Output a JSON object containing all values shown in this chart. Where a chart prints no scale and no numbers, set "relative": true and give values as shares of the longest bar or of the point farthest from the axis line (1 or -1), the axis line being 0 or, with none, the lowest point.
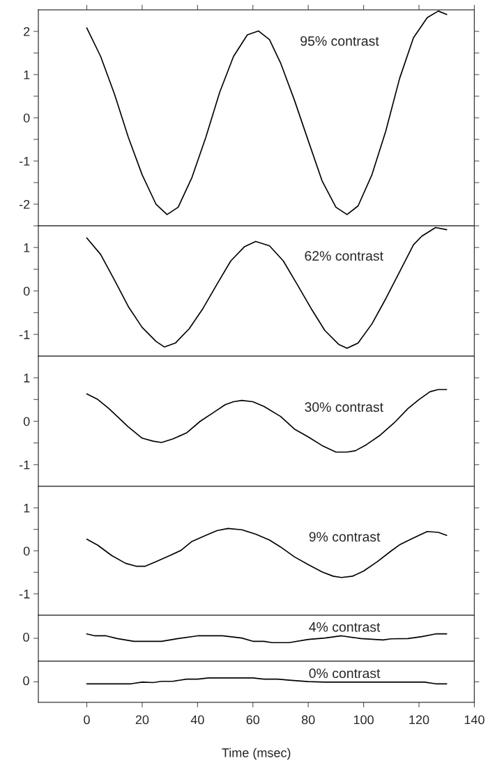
{
  "chart_data": [
    {
      "type": "line",
      "annotations": [
        "95% contrast"
      ],
      "xlim": [
        -17.5,
        140
      ],
      "xticks": [
        0,
        20,
        40,
        60,
        80,
        100,
        120,
        140
      ],
      "ylim": [
        -2.5,
        2.5
      ],
      "yticks": [
        {
          "value": -2.5,
          "label": null
        },
        -2,
        {
          "value": -1.5,
          "label": null
        },
        -1,
        {
          "value": -0.5,
          "label": null
        },
        0,
        {
          "value": 0.5,
          "label": null
        },
        1,
        {
          "value": 1.5,
          "label": null
        },
        2
      ],
      "tick_labels": "y",
      "series": [
        {
          "color": "#000000",
          "x": [
            0,
            5,
            10,
            15,
            20,
            25,
            29,
            33,
            38,
            43,
            48,
            53,
            58,
            62,
            66,
            70,
            75,
            80,
            85,
            90,
            94,
            98,
            103,
            108,
            113,
            118,
            123,
            127,
            130
          ],
          "values": [
            2.08,
            1.42,
            0.55,
            -0.45,
            -1.32,
            -2.0,
            -2.24,
            -2.07,
            -1.38,
            -0.45,
            0.59,
            1.42,
            1.92,
            2.01,
            1.81,
            1.27,
            0.41,
            -0.53,
            -1.46,
            -2.07,
            -2.24,
            -2.04,
            -1.32,
            -0.31,
            0.91,
            1.85,
            2.32,
            2.47,
            2.39
          ]
        }
      ]
    },
    {
      "type": "line",
      "annotations": [
        "62% contrast"
      ],
      "xlim": [
        -17.5,
        140
      ],
      "xticks": [
        0,
        20,
        40,
        60,
        80,
        100,
        120,
        140
      ],
      "ylim": [
        -1.5,
        1.5
      ],
      "yticks": [
        -1,
        {
          "value": -0.5,
          "label": null
        },
        0,
        {
          "value": 0.5,
          "label": null
        },
        1
      ],
      "tick_labels": "y",
      "series": [
        {
          "color": "#000000",
          "x": [
            0,
            5,
            10,
            15,
            20,
            25,
            28,
            32,
            37,
            42,
            47,
            52,
            57,
            61,
            66,
            71,
            76,
            81,
            86,
            91,
            94,
            98,
            103,
            108,
            113,
            118,
            121,
            126,
            130
          ],
          "values": [
            1.22,
            0.84,
            0.25,
            -0.36,
            -0.84,
            -1.16,
            -1.29,
            -1.2,
            -0.87,
            -0.4,
            0.15,
            0.69,
            1.02,
            1.14,
            1.04,
            0.69,
            0.15,
            -0.4,
            -0.91,
            -1.23,
            -1.32,
            -1.2,
            -0.76,
            -0.18,
            0.44,
            1.06,
            1.26,
            1.46,
            1.41
          ]
        }
      ]
    },
    {
      "type": "line",
      "annotations": [
        "30% contrast"
      ],
      "xlim": [
        -17.5,
        140
      ],
      "xticks": [
        0,
        20,
        40,
        60,
        80,
        100,
        120,
        140
      ],
      "ylim": [
        -1.5,
        1.5
      ],
      "yticks": [
        -1,
        {
          "value": -0.5,
          "label": null
        },
        0,
        {
          "value": 0.5,
          "label": null
        },
        1
      ],
      "tick_labels": "y",
      "series": [
        {
          "color": "#000000",
          "x": [
            0,
            4,
            8,
            11,
            15,
            20,
            24,
            27,
            31,
            36,
            41,
            46,
            50,
            53,
            56,
            60,
            64,
            70,
            75,
            80,
            85,
            90,
            94,
            97,
            101,
            106,
            111,
            116,
            120,
            124,
            127,
            130
          ],
          "values": [
            0.63,
            0.5,
            0.29,
            0.11,
            -0.13,
            -0.39,
            -0.46,
            -0.49,
            -0.41,
            -0.27,
            0.0,
            0.21,
            0.38,
            0.45,
            0.48,
            0.45,
            0.34,
            0.11,
            -0.18,
            -0.36,
            -0.56,
            -0.71,
            -0.71,
            -0.68,
            -0.54,
            -0.32,
            -0.04,
            0.29,
            0.5,
            0.68,
            0.73,
            0.73
          ]
        }
      ]
    },
    {
      "type": "line",
      "annotations": [
        "9% contrast"
      ],
      "xlim": [
        -17.5,
        140
      ],
      "xticks": [
        0,
        20,
        40,
        60,
        80,
        100,
        120,
        140
      ],
      "ylim": [
        -1.5,
        1.5
      ],
      "yticks": [
        -1,
        {
          "value": -0.5,
          "label": null
        },
        0,
        {
          "value": 0.5,
          "label": null
        },
        1
      ],
      "tick_labels": "y",
      "series": [
        {
          "color": "#000000",
          "x": [
            0,
            4,
            9,
            14,
            18,
            21,
            25,
            30,
            34,
            38,
            43,
            47,
            51,
            56,
            61,
            66,
            70,
            75,
            80,
            85,
            89,
            92,
            96,
            100,
            105,
            110,
            113,
            118,
            123,
            127,
            130
          ],
          "values": [
            0.27,
            0.13,
            -0.11,
            -0.29,
            -0.36,
            -0.36,
            -0.25,
            -0.11,
            0.01,
            0.22,
            0.36,
            0.47,
            0.52,
            0.49,
            0.39,
            0.25,
            0.09,
            -0.14,
            -0.32,
            -0.49,
            -0.59,
            -0.62,
            -0.59,
            -0.47,
            -0.25,
            0.0,
            0.14,
            0.3,
            0.45,
            0.43,
            0.36
          ]
        }
      ]
    },
    {
      "type": "line",
      "annotations": [
        "4% contrast",
        "0"
      ],
      "relative": true,
      "xlim": [
        -17.5,
        140
      ],
      "xticks": [
        0,
        20,
        40,
        60,
        80,
        100,
        120,
        140
      ],
      "tick_labels": false,
      "series": [
        {
          "color": "#000000",
          "x": [
            0,
            3,
            7,
            11,
            17,
            27,
            33,
            40,
            49,
            56,
            60,
            64,
            67,
            73,
            80,
            86,
            92,
            99,
            107,
            110,
            116,
            121,
            126,
            130
          ],
          "values": [
            1,
            0.93,
            0.93,
            0.83,
            0.73,
            0.73,
            0.83,
            0.93,
            0.93,
            0.85,
            0.73,
            0.73,
            0.68,
            0.68,
            0.8,
            0.85,
            0.93,
            0.83,
            0.78,
            0.82,
            0.83,
            0.9,
            1,
            1
          ]
        }
      ]
    },
    {
      "type": "line",
      "annotations": [
        "0% contrast",
        "0"
      ],
      "relative": true,
      "xlabel": "Time (msec)",
      "xlim": [
        -17.5,
        140
      ],
      "xticks": [
        0,
        20,
        40,
        60,
        80,
        100,
        120,
        140
      ],
      "tick_labels": "x",
      "series": [
        {
          "color": "#000000",
          "x": [
            0,
            16,
            20,
            24,
            27,
            31,
            36,
            40,
            44,
            60,
            64,
            69,
            74,
            80,
            86,
            110,
            122,
            126,
            130
          ],
          "values": [
            0.76,
            0.76,
            0.83,
            0.81,
            0.86,
            0.86,
            0.95,
            0.95,
            1,
            1,
            0.95,
            0.95,
            0.9,
            0.85,
            0.83,
            0.83,
            0.83,
            0.76,
            0.76
          ]
        }
      ]
    }
  ]
}
